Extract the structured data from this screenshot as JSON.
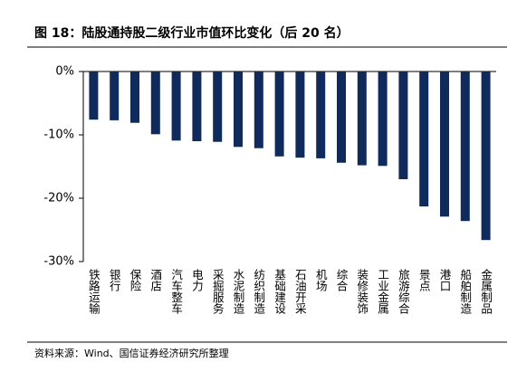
{
  "chart_data": {
    "type": "bar",
    "title": "图 18：陆股通持股二级行业市值环比变化（后 20 名）",
    "source": "资料来源：Wind、国信证券经济研究所整理",
    "categories": [
      "铁路运输",
      "银行",
      "保险",
      "酒店",
      "汽车整车",
      "电力",
      "采掘服务",
      "水泥制造",
      "纺织制造",
      "基础建设",
      "石油开采",
      "机场",
      "综合",
      "装修装饰",
      "工业金属",
      "旅游综合",
      "景点",
      "港口",
      "船舶制造",
      "金属制品"
    ],
    "values": [
      -7.6,
      -7.7,
      -8.1,
      -9.9,
      -10.9,
      -11.0,
      -11.1,
      -11.9,
      -12.1,
      -13.4,
      -13.6,
      -13.7,
      -14.4,
      -14.8,
      -14.9,
      -17.0,
      -21.3,
      -22.9,
      -23.6,
      -26.6
    ],
    "color": "#0f2a5c",
    "ylim": [
      -30,
      0
    ],
    "yticks": [
      {
        "value": 0,
        "label": "0%"
      },
      {
        "value": -10,
        "label": "-10%"
      },
      {
        "value": -20,
        "label": "-20%"
      },
      {
        "value": -30,
        "label": "-30%"
      }
    ],
    "grid": false
  }
}
